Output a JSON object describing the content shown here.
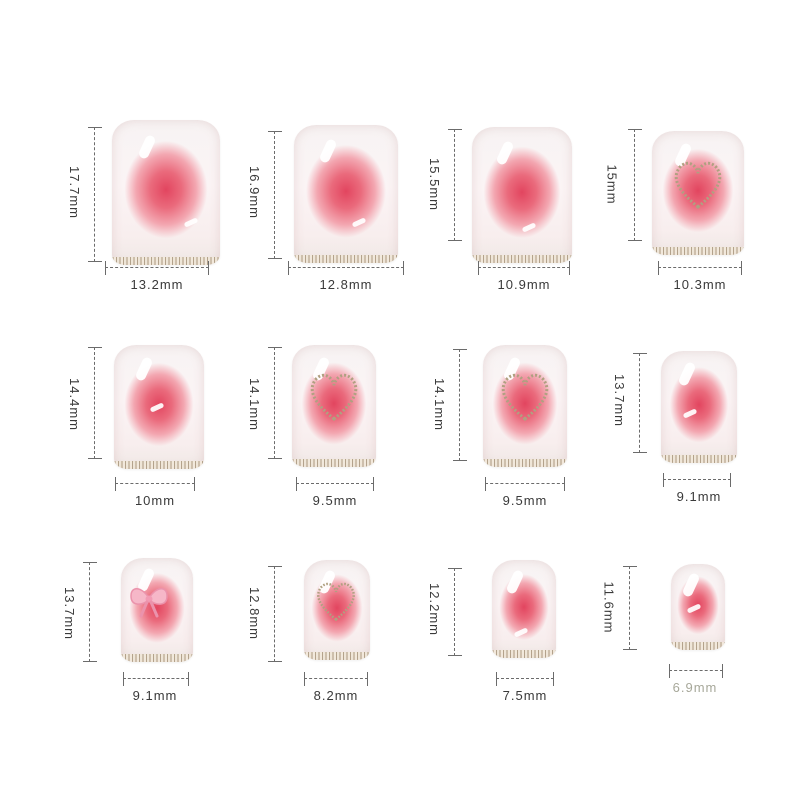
{
  "nails": [
    {
      "height": "17.7mm",
      "width": "13.2mm",
      "decoration": "blush"
    },
    {
      "height": "16.9mm",
      "width": "12.8mm",
      "decoration": "blush"
    },
    {
      "height": "15.5mm",
      "width": "10.9mm",
      "decoration": "blush"
    },
    {
      "height": "15mm",
      "width": "10.3mm",
      "decoration": "glitter-heart"
    },
    {
      "height": "14.4mm",
      "width": "10mm",
      "decoration": "blush"
    },
    {
      "height": "14.1mm",
      "width": "9.5mm",
      "decoration": "glitter-heart"
    },
    {
      "height": "14.1mm",
      "width": "9.5mm",
      "decoration": "glitter-heart"
    },
    {
      "height": "13.7mm",
      "width": "9.1mm",
      "decoration": "blush"
    },
    {
      "height": "13.7mm",
      "width": "9.1mm",
      "decoration": "bow"
    },
    {
      "height": "12.8mm",
      "width": "8.2mm",
      "decoration": "glitter-heart"
    },
    {
      "height": "12.2mm",
      "width": "7.5mm",
      "decoration": "blush"
    },
    {
      "height": "11.6mm",
      "width": "6.9mm",
      "decoration": "blush"
    }
  ],
  "colors": {
    "dimension_line": "#6b6b6b",
    "label_text": "#3a3a3a",
    "last_label_text": "#a7a89a",
    "blush_center": "#e2455f",
    "nail_base": "#f7f3f3"
  }
}
